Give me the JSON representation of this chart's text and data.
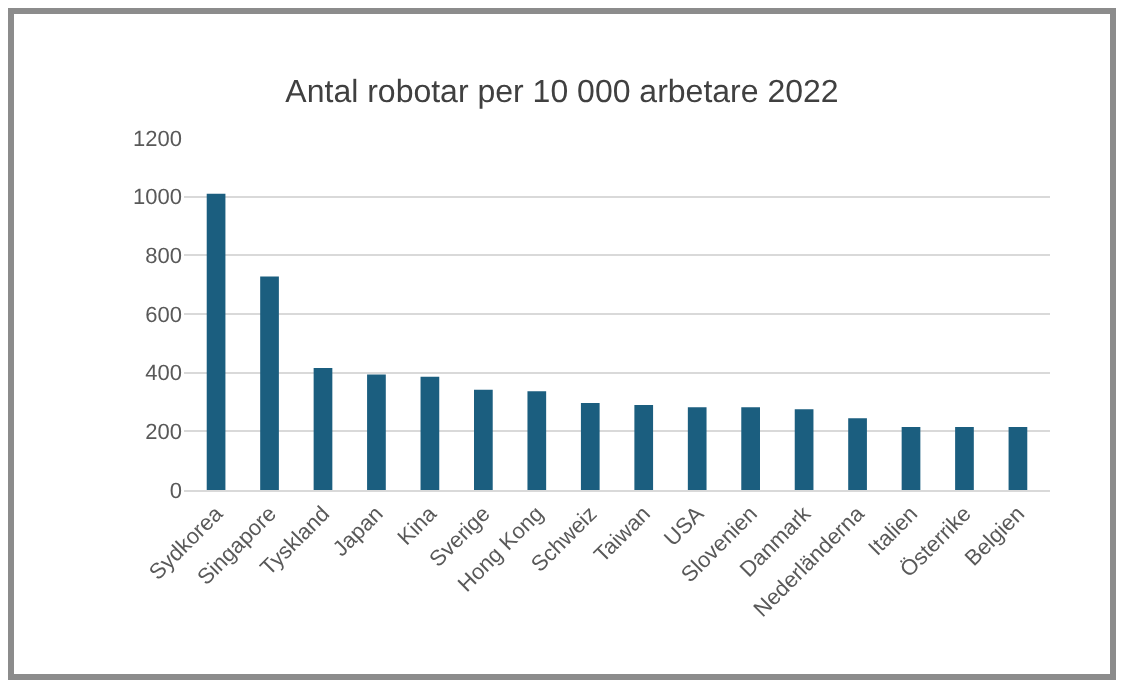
{
  "chart_data": {
    "type": "bar",
    "title": "Antal robotar per 10 000 arbetare 2022",
    "categories": [
      "Sydkorea",
      "Singapore",
      "Tyskland",
      "Japan",
      "Kina",
      "Sverige",
      "Hong Kong",
      "Schweiz",
      "Taiwan",
      "USA",
      "Slovenien",
      "Danmark",
      "Nederländerna",
      "Italien",
      "Österrike",
      "Belgien"
    ],
    "values": [
      1010,
      728,
      416,
      394,
      386,
      342,
      337,
      297,
      290,
      282,
      282,
      275,
      245,
      215,
      215,
      215
    ],
    "color": "#1b5e7f",
    "ylim": [
      0,
      1200
    ],
    "yticks": [
      0,
      200,
      400,
      600,
      800,
      1000,
      1200
    ],
    "grid": "y"
  }
}
